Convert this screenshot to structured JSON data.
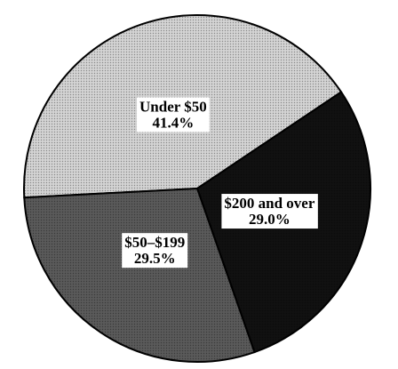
{
  "chart_data": {
    "type": "pie",
    "categories": [
      "Under $50",
      "$200 and over",
      "$50–$199"
    ],
    "values": [
      41.4,
      29.0,
      29.5
    ],
    "value_labels": [
      "41.4%",
      "29.0%",
      "29.5%"
    ],
    "colors": [
      "#d4d4d4",
      "#111111",
      "#5a5a5a"
    ]
  }
}
